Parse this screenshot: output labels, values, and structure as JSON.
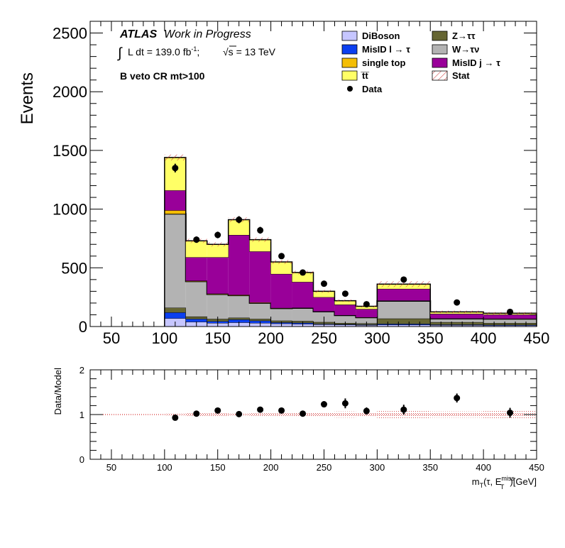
{
  "chart_data": [
    {
      "type": "bar",
      "subtype": "stacked-histogram",
      "title": "",
      "xlabel": "",
      "ylabel": "Events",
      "xlim": [
        30,
        450
      ],
      "ylim": [
        0,
        2600
      ],
      "x_ticks": [
        "50",
        "100",
        "150",
        "200",
        "250",
        "300",
        "350",
        "400",
        "450"
      ],
      "y_ticks": [
        "0",
        "500",
        "1000",
        "1500",
        "2000",
        "2500"
      ],
      "annotations": {
        "experiment": "ATLAS",
        "status": "Work in Progress",
        "lumi_integral": "∫",
        "lumi": "L dt = 139.0 fb",
        "lumi_sup": "-1",
        "lumi_tail": ";",
        "sqrt_s": "√s = 13 TeV",
        "region": "B veto CR mt>100"
      },
      "legend_position": "top-right",
      "bins": [
        [
          100,
          120
        ],
        [
          120,
          140
        ],
        [
          140,
          160
        ],
        [
          160,
          180
        ],
        [
          180,
          200
        ],
        [
          200,
          220
        ],
        [
          220,
          240
        ],
        [
          240,
          260
        ],
        [
          260,
          280
        ],
        [
          280,
          300
        ],
        [
          300,
          350
        ],
        [
          350,
          400
        ],
        [
          400,
          450
        ]
      ],
      "series": [
        {
          "name": "DiBoson",
          "color": "#c6c6ff",
          "values": [
            70,
            40,
            30,
            35,
            30,
            25,
            22,
            18,
            15,
            12,
            15,
            12,
            10
          ]
        },
        {
          "name": "MisID l → τ",
          "color": "#0b3ff0",
          "values": [
            50,
            25,
            15,
            25,
            20,
            10,
            10,
            5,
            5,
            5,
            8,
            5,
            5
          ]
        },
        {
          "name": "Z→ττ",
          "color": "#666633",
          "values": [
            40,
            20,
            20,
            15,
            15,
            15,
            15,
            15,
            10,
            10,
            45,
            20,
            15
          ]
        },
        {
          "name": "W→τν",
          "color": "#b3b3b3",
          "values": [
            800,
            300,
            210,
            190,
            135,
            105,
            110,
            90,
            65,
            50,
            150,
            30,
            35
          ]
        },
        {
          "name": "single top",
          "color": "#f4be05",
          "values": [
            30,
            5,
            5,
            5,
            5,
            3,
            3,
            2,
            2,
            2,
            3,
            2,
            2
          ]
        },
        {
          "name": "MisID j → τ",
          "color": "#990099",
          "values": [
            170,
            200,
            310,
            510,
            435,
            290,
            220,
            120,
            90,
            70,
            100,
            40,
            35
          ]
        },
        {
          "name": "t̅t̅",
          "color": "#ffff66",
          "values": [
            280,
            140,
            110,
            130,
            100,
            102,
            80,
            50,
            33,
            23,
            40,
            16,
            11
          ]
        }
      ],
      "stat_band": {
        "name": "Stat",
        "half_width": [
          25,
          18,
          18,
          20,
          18,
          16,
          15,
          12,
          10,
          10,
          25,
          10,
          10
        ]
      },
      "data": {
        "name": "Data",
        "x": [
          110,
          130,
          150,
          170,
          190,
          210,
          230,
          250,
          270,
          290,
          325,
          375,
          425
        ],
        "y": [
          1350,
          740,
          780,
          910,
          820,
          600,
          460,
          365,
          280,
          190,
          400,
          205,
          125
        ],
        "yerr": [
          37,
          27,
          28,
          30,
          29,
          24,
          21,
          19,
          17,
          14,
          20,
          14,
          11
        ]
      }
    },
    {
      "type": "scatter",
      "title": "",
      "xlabel": "m",
      "xlabel_sub1": "T",
      "xlabel_mid": "(τ, E",
      "xlabel_sup": "miss",
      "xlabel_sub2": "T",
      "xlabel_tail": ")[GeV]",
      "ylabel": "Data/Model",
      "xlim": [
        30,
        450
      ],
      "ylim": [
        0,
        2
      ],
      "x_ticks": [
        "50",
        "100",
        "150",
        "200",
        "250",
        "300",
        "350",
        "400",
        "450"
      ],
      "y_ticks": [
        "0",
        "1",
        "2"
      ],
      "reference_line": 1,
      "ratio": {
        "x": [
          110,
          130,
          150,
          170,
          190,
          210,
          230,
          250,
          270,
          290,
          325,
          375,
          425
        ],
        "y": [
          0.93,
          1.02,
          1.09,
          1.01,
          1.11,
          1.09,
          1.02,
          1.23,
          1.25,
          1.08,
          1.11,
          1.37,
          1.04
        ],
        "yerr": [
          0.03,
          0.04,
          0.04,
          0.04,
          0.04,
          0.05,
          0.05,
          0.07,
          0.11,
          0.08,
          0.11,
          0.1,
          0.11
        ]
      },
      "stat_band_half_width": [
        0.02,
        0.03,
        0.03,
        0.02,
        0.03,
        0.03,
        0.04,
        0.05,
        0.07,
        0.06,
        0.08,
        0.07,
        0.09
      ]
    }
  ],
  "colors": {
    "stat_hatch": "#cc3333",
    "ratio_band": "#e87a7a",
    "axis": "#000000"
  }
}
